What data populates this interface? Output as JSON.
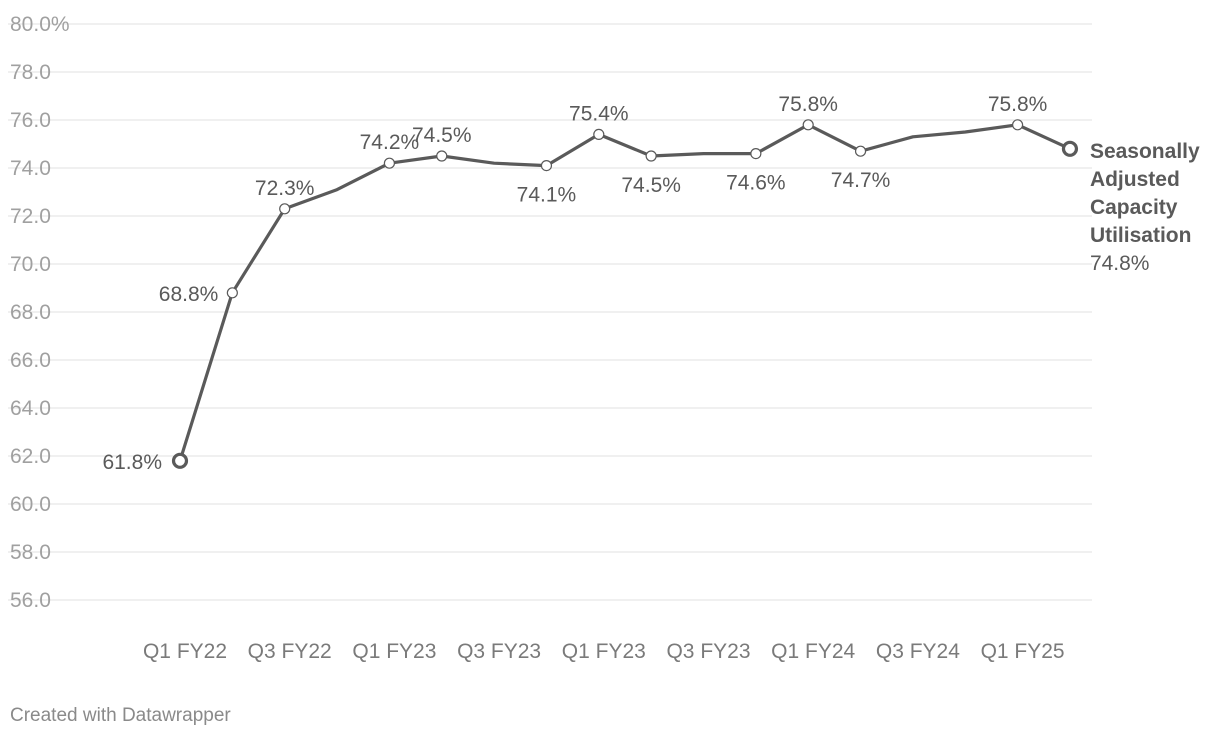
{
  "chart_data": {
    "type": "line",
    "title": "",
    "xlabel": "",
    "ylabel": "",
    "ylim": [
      56,
      80
    ],
    "y_ticks": [
      "80.0%",
      "78.0",
      "76.0",
      "74.0",
      "72.0",
      "70.0",
      "68.0",
      "66.0",
      "64.0",
      "62.0",
      "60.0",
      "58.0",
      "56.0"
    ],
    "y_tick_values": [
      80,
      78,
      76,
      74,
      72,
      70,
      68,
      66,
      64,
      62,
      60,
      58,
      56
    ],
    "x_tick_labels": [
      "Q1 FY22",
      "Q3 FY22",
      "Q1 FY23",
      "Q3 FY23",
      "Q1 FY23",
      "Q3 FY23",
      "Q1 FY24",
      "Q3 FY24",
      "Q1 FY25"
    ],
    "x_tick_indices": [
      0,
      2,
      4,
      6,
      8,
      10,
      12,
      14,
      16
    ],
    "grid": true,
    "series": [
      {
        "name": "Seasonally Adjusted Capacity Utilisation",
        "values": [
          61.8,
          68.8,
          72.3,
          73.1,
          74.2,
          74.5,
          74.2,
          74.1,
          75.4,
          74.5,
          74.6,
          74.6,
          75.8,
          74.7,
          75.3,
          75.5,
          75.8,
          74.8
        ],
        "color": "#5a5a5a"
      }
    ],
    "point_labels": [
      {
        "index": 0,
        "text": "61.8%"
      },
      {
        "index": 1,
        "text": "68.8%"
      },
      {
        "index": 2,
        "text": "72.3%"
      },
      {
        "index": 4,
        "text": "74.2%"
      },
      {
        "index": 5,
        "text": "74.5%"
      },
      {
        "index": 7,
        "text": "74.1%"
      },
      {
        "index": 8,
        "text": "75.4%"
      },
      {
        "index": 9,
        "text": "74.5%"
      },
      {
        "index": 11,
        "text": "74.6%"
      },
      {
        "index": 12,
        "text": "75.8%"
      },
      {
        "index": 13,
        "text": "74.7%"
      },
      {
        "index": 16,
        "text": "75.8%"
      }
    ],
    "end_label": {
      "lines": [
        "Seasonally",
        "Adjusted",
        "Capacity",
        "Utilisation"
      ],
      "value": "74.8%"
    }
  },
  "footer": {
    "credit": "Created with Datawrapper"
  }
}
